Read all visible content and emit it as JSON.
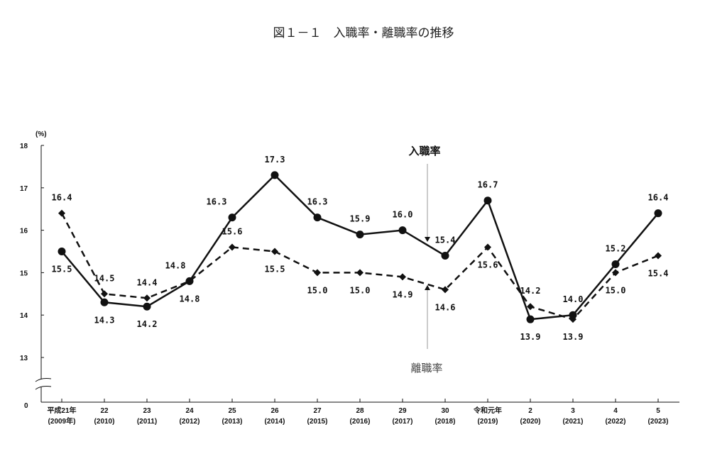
{
  "title": "図１－１　入職率・離職率の推移",
  "chart_data": {
    "type": "line",
    "title": "図１－１　入職率・離職率の推移",
    "ylabel": "(%)",
    "ylim": [
      13,
      18
    ],
    "yticks": [
      "18",
      "17",
      "16",
      "15",
      "14",
      "13"
    ],
    "y_zero_label": "0",
    "axis_break": true,
    "categories": [
      [
        "平成21年",
        "(2009年)"
      ],
      [
        "22",
        "(2010)"
      ],
      [
        "23",
        "(2011)"
      ],
      [
        "24",
        "(2012)"
      ],
      [
        "25",
        "(2013)"
      ],
      [
        "26",
        "(2014)"
      ],
      [
        "27",
        "(2015)"
      ],
      [
        "28",
        "(2016)"
      ],
      [
        "29",
        "(2017)"
      ],
      [
        "30",
        "(2018)"
      ],
      [
        "令和元年",
        "(2019)"
      ],
      [
        "2",
        "(2020)"
      ],
      [
        "3",
        "(2021)"
      ],
      [
        "4",
        "(2022)"
      ],
      [
        "5",
        "(2023)"
      ]
    ],
    "series": [
      {
        "name": "入職率",
        "style": "solid",
        "marker": "circle",
        "values": [
          15.5,
          14.3,
          14.2,
          14.8,
          16.3,
          17.3,
          16.3,
          15.9,
          16.0,
          15.4,
          16.7,
          13.9,
          14.0,
          15.2,
          16.4
        ]
      },
      {
        "name": "離職率",
        "style": "dashed",
        "marker": "diamond",
        "values": [
          16.4,
          14.5,
          14.4,
          14.8,
          15.6,
          15.5,
          15.0,
          15.0,
          14.9,
          14.6,
          15.6,
          14.2,
          13.9,
          15.0,
          15.4
        ]
      }
    ],
    "grid": false,
    "line_color": "#111111",
    "arrow_color": "#999999"
  }
}
